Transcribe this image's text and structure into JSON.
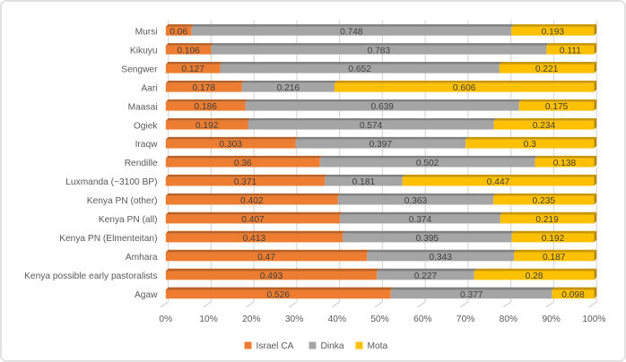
{
  "chart_data": {
    "type": "bar",
    "orientation": "horizontal",
    "stacking": "percent",
    "style": "excel-3d",
    "title": "",
    "xlabel": "",
    "ylabel": "",
    "categories": [
      "Mursi",
      "Kikuyu",
      "Sengwer",
      "Aari",
      "Maasai",
      "Ogiek",
      "Iraqw",
      "Rendille",
      "Luxmanda (~3100 BP)",
      "Kenya PN (other)",
      "Kenya PN (all)",
      "Kenya PN (Elmenteitan)",
      "Amhara",
      "Kenya possible early pastoralists",
      "Agaw"
    ],
    "series": [
      {
        "name": "Israel CA",
        "color": "#ED7D31",
        "top_color": "#BA6226",
        "side_color": "#A85820",
        "values": [
          0.06,
          0.106,
          0.127,
          0.178,
          0.186,
          0.192,
          0.303,
          0.36,
          0.371,
          0.402,
          0.407,
          0.413,
          0.47,
          0.493,
          0.526
        ]
      },
      {
        "name": "Dinka",
        "color": "#A5A5A5",
        "top_color": "#818181",
        "side_color": "#757575",
        "values": [
          0.748,
          0.783,
          0.652,
          0.216,
          0.639,
          0.574,
          0.397,
          0.502,
          0.181,
          0.363,
          0.374,
          0.395,
          0.343,
          0.227,
          0.377
        ]
      },
      {
        "name": "Mota",
        "color": "#FFC000",
        "top_color": "#C79600",
        "side_color": "#B58800",
        "values": [
          0.193,
          0.111,
          0.221,
          0.606,
          0.175,
          0.234,
          0.3,
          0.138,
          0.447,
          0.235,
          0.219,
          0.192,
          0.187,
          0.28,
          0.098
        ]
      }
    ],
    "x_axis": {
      "tick_labels": [
        "0%",
        "10%",
        "20%",
        "30%",
        "40%",
        "50%",
        "60%",
        "70%",
        "80%",
        "90%",
        "100%"
      ],
      "min": 0,
      "max": 1,
      "grid": true
    },
    "legend": {
      "position": "bottom",
      "entries": [
        "Israel CA",
        "Dinka",
        "Mota"
      ]
    },
    "colors": {
      "gridline": "#D9D9D9",
      "tick": "#D2D2D2",
      "axis_text": "#595959",
      "category_text": "#595959",
      "data_label_text": "#404040",
      "legend_text": "#595959",
      "background": "#FFFFFF",
      "frame_border": "#E2E2E2"
    }
  }
}
